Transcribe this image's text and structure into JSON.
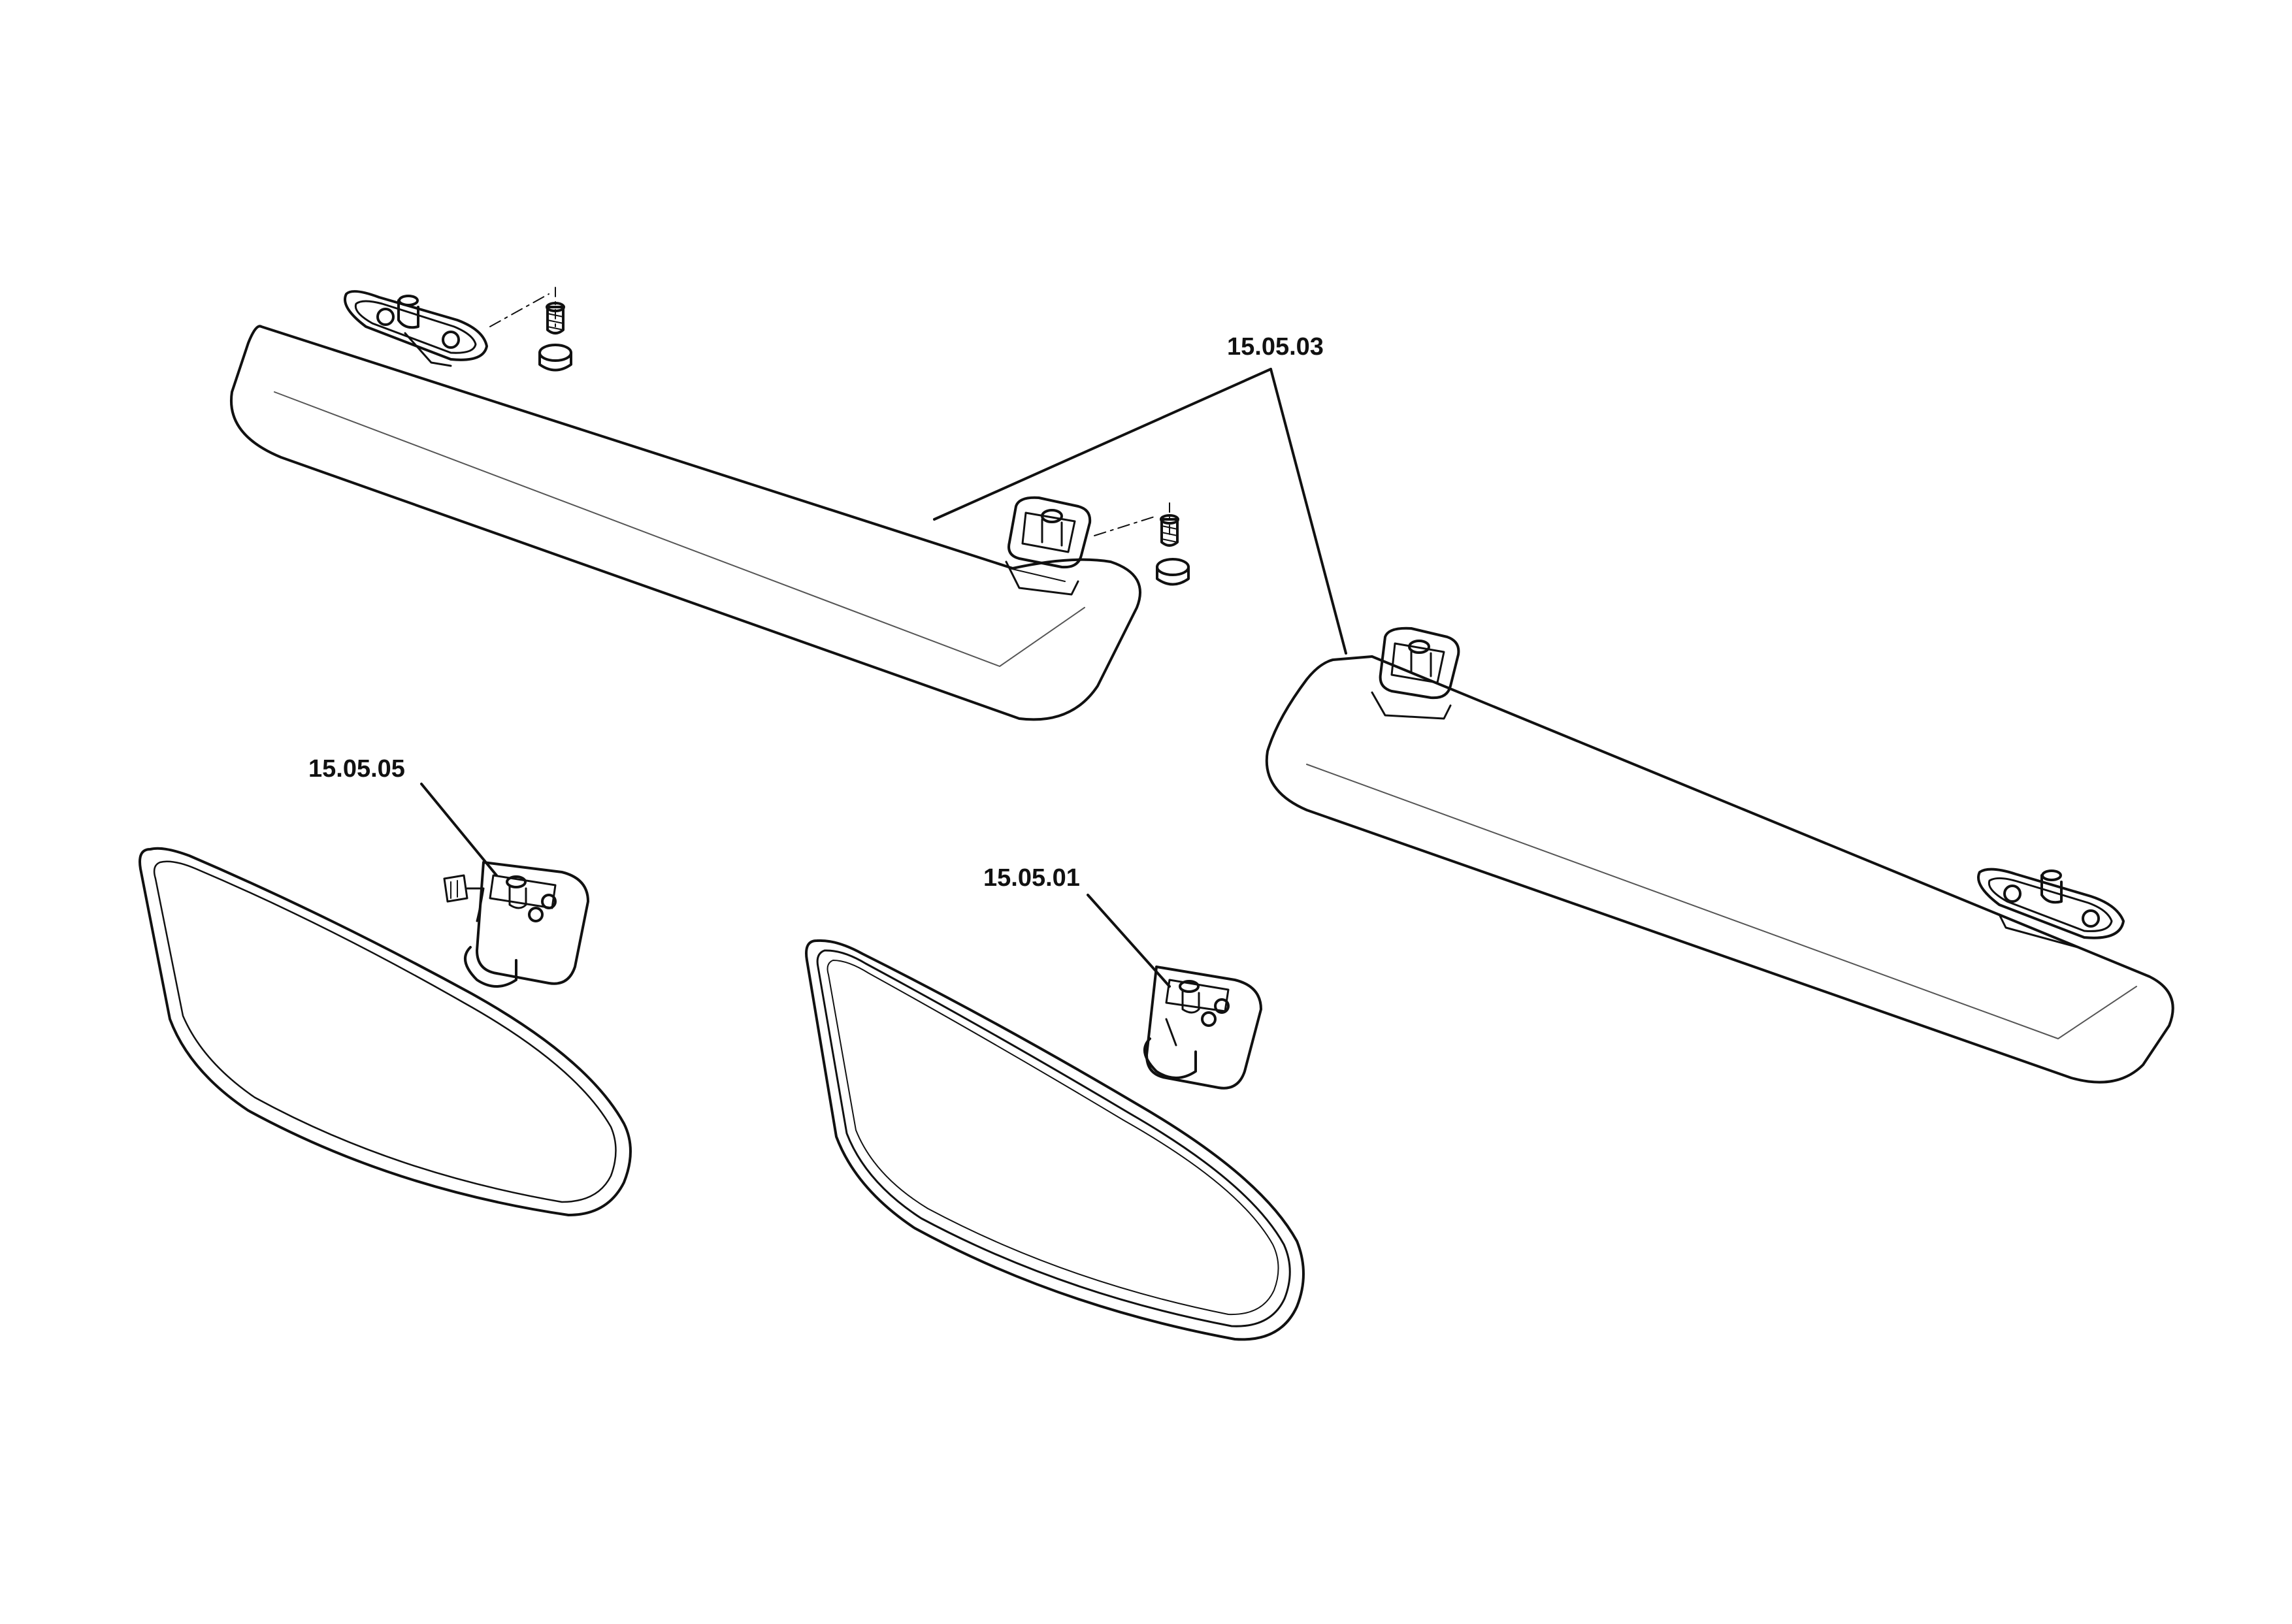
{
  "diagram": {
    "line_color": "#111111",
    "background_color": "#ffffff",
    "callouts": {
      "sun_visors": "15.05.03",
      "mirror_left": "15.05.05",
      "mirror_center": "15.05.01"
    },
    "parts": [
      {
        "part": "sun-visor-left",
        "callout": "15.05.03"
      },
      {
        "part": "sun-visor-right",
        "callout": "15.05.03"
      },
      {
        "part": "interior-mirror-left",
        "callout": "15.05.05"
      },
      {
        "part": "interior-mirror-center",
        "callout": "15.05.01"
      }
    ]
  }
}
